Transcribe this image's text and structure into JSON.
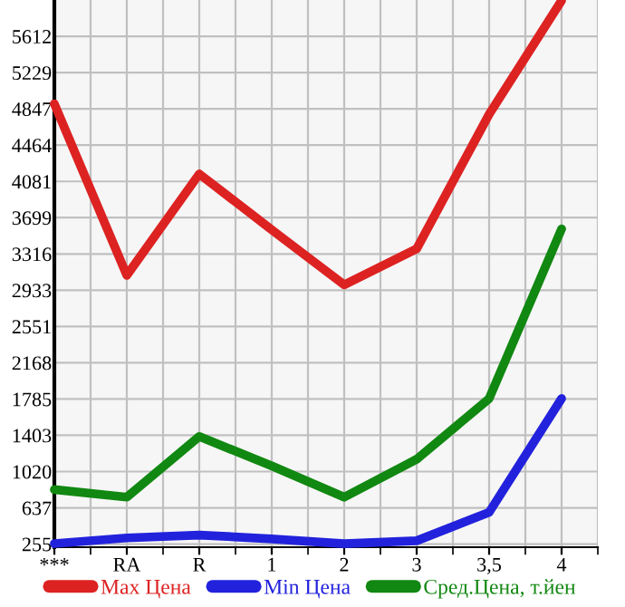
{
  "chart_data": {
    "type": "line",
    "categories": [
      "***",
      "RA",
      "R",
      "1",
      "2",
      "3",
      "3,5",
      "4"
    ],
    "series": [
      {
        "name": "Max Цена",
        "color": "#dd2222",
        "values": [
          4900,
          3090,
          4160,
          3570,
          2990,
          3370,
          4790,
          5990
        ]
      },
      {
        "name": "Min Цена",
        "color": "#2222dd",
        "values": [
          260,
          320,
          350,
          310,
          260,
          290,
          590,
          1790
        ]
      },
      {
        "name": "Сред.Цена, т.йен",
        "color": "#118811",
        "values": [
          830,
          750,
          1390,
          1080,
          750,
          1150,
          1790,
          3580
        ]
      }
    ],
    "ylim": [
      222,
      5995
    ],
    "yticks": [
      255,
      637,
      1020,
      1403,
      1785,
      2168,
      2551,
      2933,
      3316,
      3699,
      4081,
      4464,
      4847,
      5229,
      5612
    ],
    "grid": true,
    "legend": "bottom",
    "marker": "none",
    "line_style": "solid"
  }
}
